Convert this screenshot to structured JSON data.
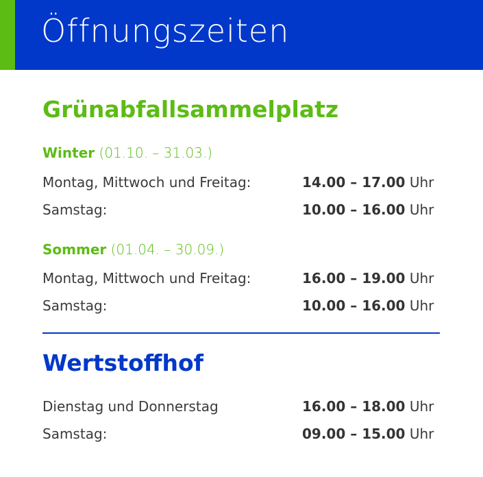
{
  "title": "Öffnungszeiten",
  "colors": {
    "blue": "#0238c9",
    "green": "#5cbc14",
    "text": "#3a3a3a"
  },
  "gruen": {
    "heading": "Grünabfallsammelplatz",
    "seasons": [
      {
        "name": "Winter",
        "range": "(01.10. – 31.03.)",
        "rows": [
          {
            "days": "Montag, Mittwoch und Freitag:",
            "time": "14.00 – 17.00",
            "unit": "Uhr"
          },
          {
            "days": "Samstag:",
            "time": "10.00 – 16.00",
            "unit": "Uhr"
          }
        ]
      },
      {
        "name": "Sommer",
        "range": "(01.04. – 30.09.)",
        "rows": [
          {
            "days": "Montag, Mittwoch und Freitag:",
            "time": "16.00 – 19.00",
            "unit": "Uhr"
          },
          {
            "days": "Samstag:",
            "time": "10.00 – 16.00",
            "unit": "Uhr"
          }
        ]
      }
    ]
  },
  "wertstoff": {
    "heading": "Wertstoffhof",
    "rows": [
      {
        "days": "Dienstag und Donnerstag",
        "time": "16.00 – 18.00",
        "unit": "Uhr"
      },
      {
        "days": "Samstag:",
        "time": "09.00 – 15.00",
        "unit": "Uhr"
      }
    ]
  }
}
